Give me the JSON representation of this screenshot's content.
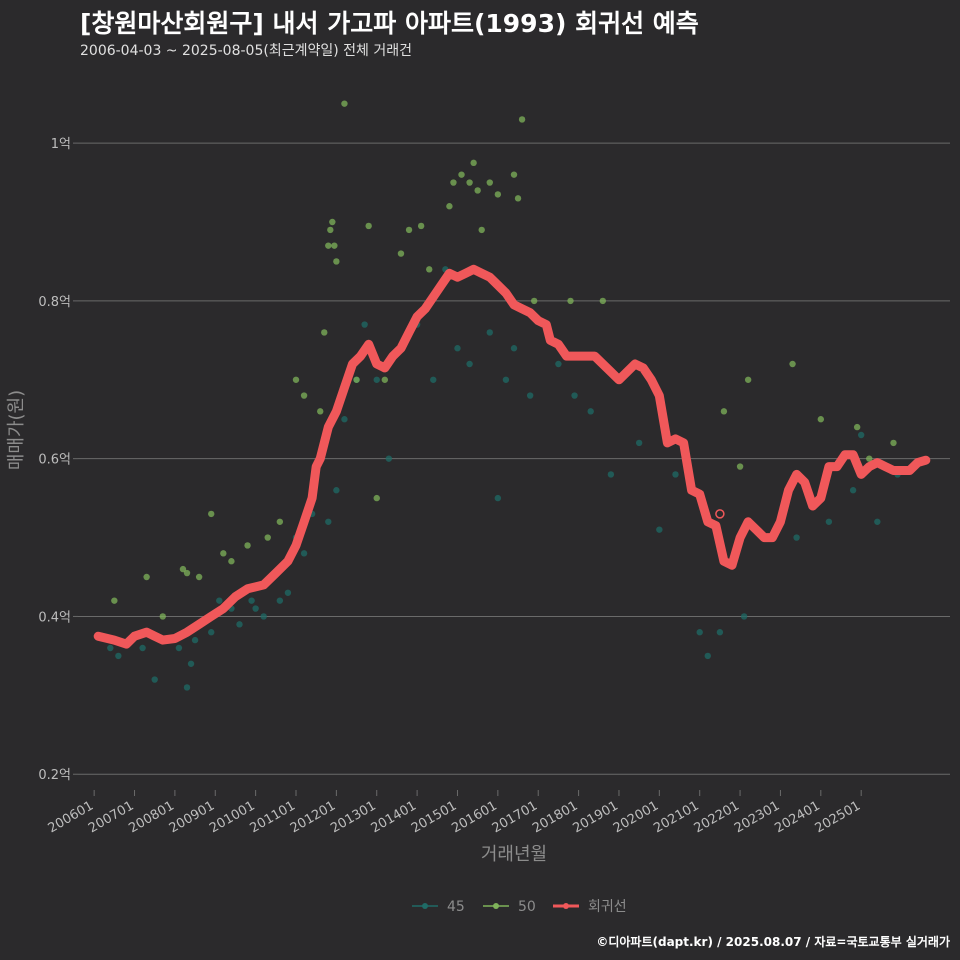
{
  "chart_data": {
    "type": "scatter",
    "title": "[창원마산회원구] 내서 가고파 아파트(1993) 회귀선 예측",
    "subtitle": "2006-04-03 ~ 2025-08-05(최근계약일) 전체 거래건",
    "xlabel": "거래년월",
    "ylabel": "매매가(원)",
    "caption": "©디아파트(dapt.kr) / 2025.08.07 / 자료=국토교통부 실거래가",
    "x_ticks": [
      "200601",
      "200701",
      "200801",
      "200901",
      "201001",
      "201101",
      "201201",
      "201301",
      "201401",
      "201501",
      "201601",
      "201701",
      "201801",
      "201901",
      "202001",
      "202101",
      "202201",
      "202301",
      "202401",
      "202501"
    ],
    "y_ticks": [
      {
        "value": 0.2,
        "label": "0.2억"
      },
      {
        "value": 0.4,
        "label": "0.4억"
      },
      {
        "value": 0.6,
        "label": "0.6억"
      },
      {
        "value": 0.8,
        "label": "0.8억"
      },
      {
        "value": 1.0,
        "label": "1억"
      }
    ],
    "xlim": [
      2005.6,
      2027.2
    ],
    "ylim": [
      0.18,
      1.08
    ],
    "grid": "horizontal",
    "legend_position": "bottom",
    "series": [
      {
        "name": "45",
        "kind": "points",
        "color": "#1f6b66",
        "points": [
          [
            2006.4,
            0.36
          ],
          [
            2006.6,
            0.35
          ],
          [
            2007.2,
            0.36
          ],
          [
            2007.5,
            0.32
          ],
          [
            2007.8,
            0.37
          ],
          [
            2008.1,
            0.36
          ],
          [
            2008.3,
            0.31
          ],
          [
            2008.4,
            0.34
          ],
          [
            2008.5,
            0.37
          ],
          [
            2008.9,
            0.38
          ],
          [
            2009.1,
            0.42
          ],
          [
            2009.4,
            0.41
          ],
          [
            2009.6,
            0.39
          ],
          [
            2009.9,
            0.42
          ],
          [
            2010.0,
            0.41
          ],
          [
            2010.2,
            0.4
          ],
          [
            2010.4,
            0.45
          ],
          [
            2010.6,
            0.42
          ],
          [
            2010.8,
            0.43
          ],
          [
            2011.0,
            0.5
          ],
          [
            2011.2,
            0.48
          ],
          [
            2011.4,
            0.53
          ],
          [
            2011.6,
            0.6
          ],
          [
            2011.8,
            0.52
          ],
          [
            2012.0,
            0.56
          ],
          [
            2012.2,
            0.65
          ],
          [
            2012.5,
            0.7
          ],
          [
            2012.7,
            0.77
          ],
          [
            2013.0,
            0.7
          ],
          [
            2013.3,
            0.6
          ],
          [
            2013.6,
            0.74
          ],
          [
            2014.0,
            0.77
          ],
          [
            2014.4,
            0.7
          ],
          [
            2014.7,
            0.84
          ],
          [
            2015.0,
            0.74
          ],
          [
            2015.3,
            0.72
          ],
          [
            2015.8,
            0.76
          ],
          [
            2016.0,
            0.55
          ],
          [
            2016.2,
            0.7
          ],
          [
            2016.4,
            0.74
          ],
          [
            2016.8,
            0.68
          ],
          [
            2017.5,
            0.72
          ],
          [
            2017.9,
            0.68
          ],
          [
            2018.3,
            0.66
          ],
          [
            2018.8,
            0.58
          ],
          [
            2019.5,
            0.62
          ],
          [
            2020.0,
            0.51
          ],
          [
            2020.4,
            0.58
          ],
          [
            2021.0,
            0.38
          ],
          [
            2021.2,
            0.35
          ],
          [
            2021.5,
            0.38
          ],
          [
            2022.1,
            0.4
          ],
          [
            2022.7,
            0.5
          ],
          [
            2023.4,
            0.5
          ],
          [
            2024.2,
            0.52
          ],
          [
            2024.8,
            0.56
          ],
          [
            2025.0,
            0.63
          ],
          [
            2025.4,
            0.52
          ],
          [
            2025.9,
            0.58
          ]
        ]
      },
      {
        "name": "50",
        "kind": "points",
        "color": "#7fb35a",
        "points": [
          [
            2006.5,
            0.42
          ],
          [
            2007.3,
            0.45
          ],
          [
            2007.7,
            0.4
          ],
          [
            2008.2,
            0.46
          ],
          [
            2008.3,
            0.455
          ],
          [
            2008.6,
            0.45
          ],
          [
            2008.9,
            0.53
          ],
          [
            2009.2,
            0.48
          ],
          [
            2009.4,
            0.47
          ],
          [
            2009.8,
            0.49
          ],
          [
            2010.3,
            0.5
          ],
          [
            2010.6,
            0.52
          ],
          [
            2011.0,
            0.7
          ],
          [
            2011.2,
            0.68
          ],
          [
            2011.4,
            0.55
          ],
          [
            2011.6,
            0.66
          ],
          [
            2011.7,
            0.76
          ],
          [
            2011.8,
            0.87
          ],
          [
            2011.85,
            0.89
          ],
          [
            2011.9,
            0.9
          ],
          [
            2011.95,
            0.87
          ],
          [
            2012.0,
            0.85
          ],
          [
            2012.2,
            1.05
          ],
          [
            2012.4,
            0.72
          ],
          [
            2012.5,
            0.7
          ],
          [
            2012.8,
            0.895
          ],
          [
            2013.0,
            0.55
          ],
          [
            2013.2,
            0.7
          ],
          [
            2013.6,
            0.86
          ],
          [
            2013.8,
            0.89
          ],
          [
            2014.1,
            0.895
          ],
          [
            2014.3,
            0.84
          ],
          [
            2014.8,
            0.92
          ],
          [
            2014.9,
            0.95
          ],
          [
            2015.1,
            0.96
          ],
          [
            2015.3,
            0.95
          ],
          [
            2015.4,
            0.975
          ],
          [
            2015.5,
            0.94
          ],
          [
            2015.6,
            0.89
          ],
          [
            2015.8,
            0.95
          ],
          [
            2016.0,
            0.935
          ],
          [
            2016.4,
            0.96
          ],
          [
            2016.5,
            0.93
          ],
          [
            2016.6,
            1.03
          ],
          [
            2016.9,
            0.8
          ],
          [
            2017.3,
            0.75
          ],
          [
            2017.8,
            0.8
          ],
          [
            2018.6,
            0.8
          ],
          [
            2021.6,
            0.66
          ],
          [
            2022.0,
            0.59
          ],
          [
            2022.2,
            0.7
          ],
          [
            2023.3,
            0.72
          ],
          [
            2024.0,
            0.65
          ],
          [
            2024.9,
            0.64
          ],
          [
            2025.2,
            0.6
          ],
          [
            2025.8,
            0.62
          ]
        ]
      },
      {
        "name": "회귀선",
        "kind": "line",
        "color": "#f0585a",
        "points": [
          [
            2006.1,
            0.375
          ],
          [
            2006.5,
            0.37
          ],
          [
            2006.8,
            0.365
          ],
          [
            2007.0,
            0.375
          ],
          [
            2007.3,
            0.38
          ],
          [
            2007.5,
            0.375
          ],
          [
            2007.7,
            0.37
          ],
          [
            2008.0,
            0.372
          ],
          [
            2008.3,
            0.38
          ],
          [
            2008.6,
            0.39
          ],
          [
            2008.9,
            0.4
          ],
          [
            2009.2,
            0.41
          ],
          [
            2009.5,
            0.425
          ],
          [
            2009.8,
            0.435
          ],
          [
            2010.2,
            0.44
          ],
          [
            2010.5,
            0.455
          ],
          [
            2010.8,
            0.47
          ],
          [
            2011.0,
            0.49
          ],
          [
            2011.2,
            0.52
          ],
          [
            2011.4,
            0.55
          ],
          [
            2011.5,
            0.59
          ],
          [
            2011.6,
            0.6
          ],
          [
            2011.8,
            0.64
          ],
          [
            2012.0,
            0.66
          ],
          [
            2012.2,
            0.69
          ],
          [
            2012.4,
            0.72
          ],
          [
            2012.6,
            0.73
          ],
          [
            2012.8,
            0.745
          ],
          [
            2013.0,
            0.72
          ],
          [
            2013.2,
            0.715
          ],
          [
            2013.4,
            0.73
          ],
          [
            2013.6,
            0.74
          ],
          [
            2013.8,
            0.76
          ],
          [
            2014.0,
            0.78
          ],
          [
            2014.2,
            0.79
          ],
          [
            2014.4,
            0.805
          ],
          [
            2014.6,
            0.82
          ],
          [
            2014.8,
            0.835
          ],
          [
            2015.0,
            0.83
          ],
          [
            2015.2,
            0.835
          ],
          [
            2015.4,
            0.84
          ],
          [
            2015.6,
            0.835
          ],
          [
            2015.8,
            0.83
          ],
          [
            2016.0,
            0.82
          ],
          [
            2016.2,
            0.81
          ],
          [
            2016.4,
            0.795
          ],
          [
            2016.6,
            0.79
          ],
          [
            2016.8,
            0.785
          ],
          [
            2017.0,
            0.775
          ],
          [
            2017.2,
            0.77
          ],
          [
            2017.3,
            0.75
          ],
          [
            2017.5,
            0.745
          ],
          [
            2017.7,
            0.73
          ],
          [
            2018.0,
            0.73
          ],
          [
            2018.4,
            0.73
          ],
          [
            2018.6,
            0.72
          ],
          [
            2018.8,
            0.71
          ],
          [
            2019.0,
            0.7
          ],
          [
            2019.2,
            0.71
          ],
          [
            2019.4,
            0.72
          ],
          [
            2019.6,
            0.715
          ],
          [
            2019.8,
            0.7
          ],
          [
            2020.0,
            0.68
          ],
          [
            2020.2,
            0.62
          ],
          [
            2020.4,
            0.625
          ],
          [
            2020.6,
            0.62
          ],
          [
            2020.8,
            0.56
          ],
          [
            2021.0,
            0.555
          ],
          [
            2021.2,
            0.52
          ],
          [
            2021.4,
            0.515
          ],
          [
            2021.6,
            0.47
          ],
          [
            2021.8,
            0.465
          ],
          [
            2022.0,
            0.5
          ],
          [
            2022.2,
            0.52
          ],
          [
            2022.4,
            0.51
          ],
          [
            2022.6,
            0.5
          ],
          [
            2022.8,
            0.5
          ],
          [
            2023.0,
            0.52
          ],
          [
            2023.2,
            0.56
          ],
          [
            2023.4,
            0.58
          ],
          [
            2023.6,
            0.57
          ],
          [
            2023.8,
            0.54
          ],
          [
            2024.0,
            0.55
          ],
          [
            2024.2,
            0.59
          ],
          [
            2024.4,
            0.59
          ],
          [
            2024.6,
            0.605
          ],
          [
            2024.8,
            0.605
          ],
          [
            2025.0,
            0.58
          ],
          [
            2025.2,
            0.59
          ],
          [
            2025.4,
            0.595
          ],
          [
            2025.6,
            0.59
          ],
          [
            2025.8,
            0.585
          ],
          [
            2026.0,
            0.585
          ],
          [
            2026.2,
            0.585
          ],
          [
            2026.4,
            0.595
          ],
          [
            2026.6,
            0.598
          ]
        ]
      }
    ],
    "highlight_point": {
      "x": 2021.5,
      "y": 0.53,
      "color": "#f0585a"
    }
  }
}
